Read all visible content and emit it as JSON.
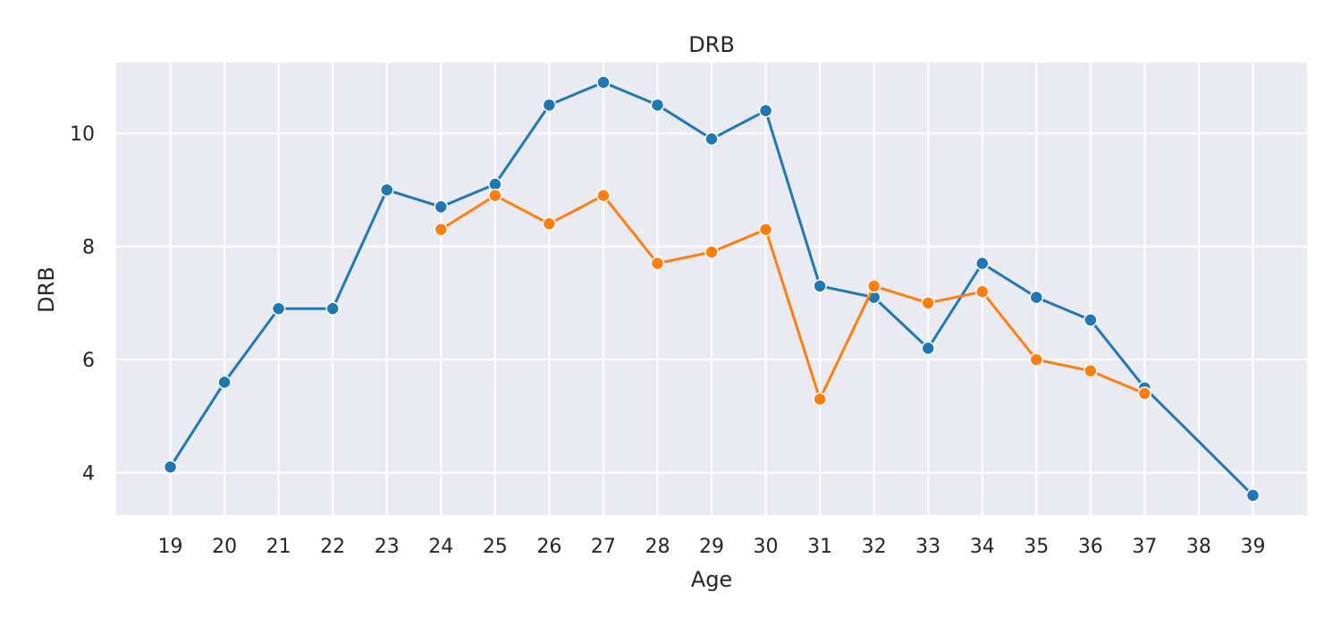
{
  "chart_data": {
    "type": "line",
    "title": "DRB",
    "xlabel": "Age",
    "ylabel": "DRB",
    "xlim": [
      18,
      40
    ],
    "ylim": [
      3.25,
      11.25
    ],
    "x_ticks": [
      "19",
      "20",
      "21",
      "22",
      "23",
      "24",
      "25",
      "26",
      "27",
      "28",
      "29",
      "30",
      "31",
      "32",
      "33",
      "34",
      "35",
      "36",
      "37",
      "38",
      "39"
    ],
    "y_ticks": [
      "4",
      "6",
      "8",
      "10"
    ],
    "grid": true,
    "legend": "none",
    "series": [
      {
        "color": "#1f77b4",
        "points": [
          {
            "x": 19,
            "y": 4.1
          },
          {
            "x": 20,
            "y": 5.6
          },
          {
            "x": 21,
            "y": 6.9
          },
          {
            "x": 22,
            "y": 6.9
          },
          {
            "x": 23,
            "y": 9.0
          },
          {
            "x": 24,
            "y": 8.7
          },
          {
            "x": 25,
            "y": 9.1
          },
          {
            "x": 26,
            "y": 10.5
          },
          {
            "x": 27,
            "y": 10.9
          },
          {
            "x": 28,
            "y": 10.5
          },
          {
            "x": 29,
            "y": 9.9
          },
          {
            "x": 30,
            "y": 10.4
          },
          {
            "x": 31,
            "y": 7.3
          },
          {
            "x": 32,
            "y": 7.1
          },
          {
            "x": 33,
            "y": 6.2
          },
          {
            "x": 34,
            "y": 7.7
          },
          {
            "x": 35,
            "y": 7.1
          },
          {
            "x": 36,
            "y": 6.7
          },
          {
            "x": 37,
            "y": 5.5
          },
          {
            "x": 39,
            "y": 3.6
          }
        ]
      },
      {
        "color": "#ff7f0e",
        "points": [
          {
            "x": 24,
            "y": 8.3
          },
          {
            "x": 25,
            "y": 8.9
          },
          {
            "x": 26,
            "y": 8.4
          },
          {
            "x": 27,
            "y": 8.9
          },
          {
            "x": 28,
            "y": 7.7
          },
          {
            "x": 29,
            "y": 7.9
          },
          {
            "x": 30,
            "y": 8.3
          },
          {
            "x": 31,
            "y": 5.3
          },
          {
            "x": 32,
            "y": 7.3
          },
          {
            "x": 33,
            "y": 7.0
          },
          {
            "x": 34,
            "y": 7.2
          },
          {
            "x": 35,
            "y": 6.0
          },
          {
            "x": 36,
            "y": 5.8
          },
          {
            "x": 37,
            "y": 5.4
          }
        ]
      }
    ],
    "colors": {
      "plot_background": "#eaeaf2",
      "grid": "#ffffff",
      "text": "#262626"
    }
  }
}
